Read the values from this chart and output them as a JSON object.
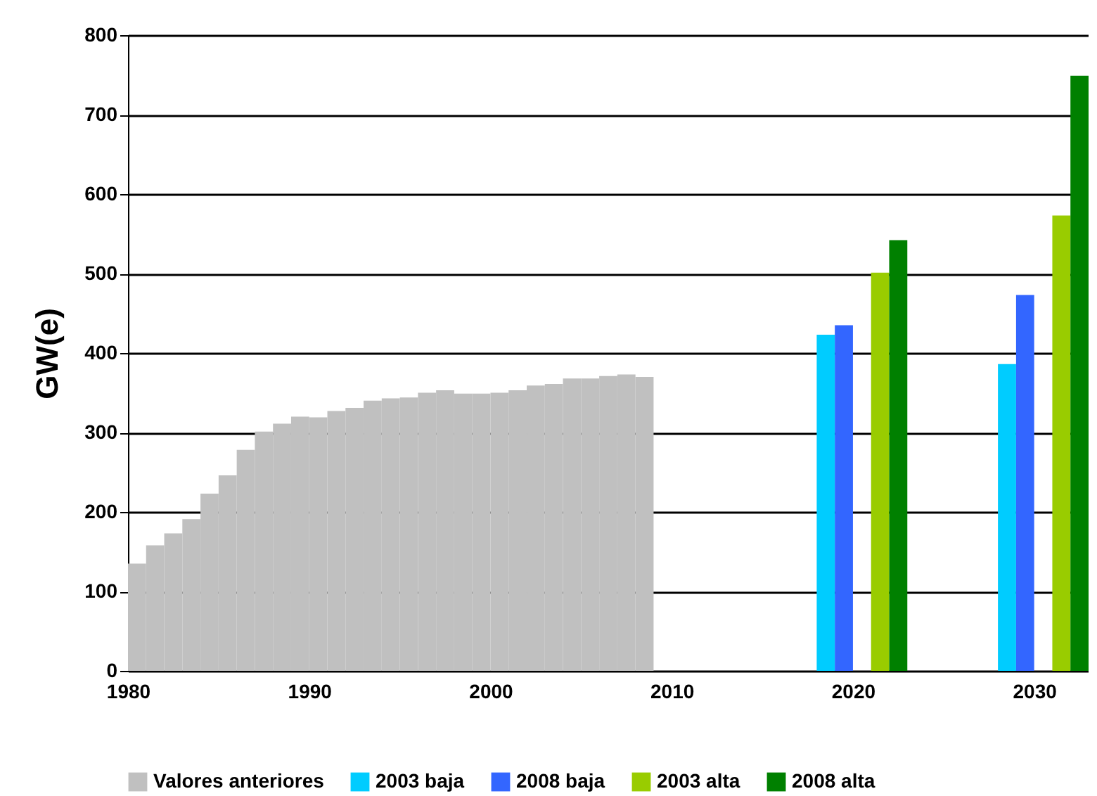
{
  "chart_data": {
    "type": "bar",
    "ylabel": "GW(e)",
    "x": [
      1980,
      1981,
      1982,
      1983,
      1984,
      1985,
      1986,
      1987,
      1988,
      1989,
      1990,
      1991,
      1992,
      1993,
      1994,
      1995,
      1996,
      1997,
      1998,
      1999,
      2000,
      2001,
      2002,
      2003,
      2004,
      2005,
      2006,
      2007,
      2008
    ],
    "series": [
      {
        "name": "Valores anteriores",
        "color": "#c0c0c0",
        "values": [
          135,
          158,
          173,
          191,
          223,
          246,
          278,
          301,
          311,
          320,
          319,
          327,
          331,
          340,
          343,
          344,
          350,
          353,
          349,
          349,
          350,
          353,
          359,
          361,
          368,
          368,
          371,
          373,
          370
        ]
      },
      {
        "name": "2003 baja",
        "color": "#00ccff",
        "x": [
          2018,
          2028
        ],
        "values": [
          423,
          386
        ]
      },
      {
        "name": "2008 baja",
        "color": "#3366ff",
        "x": [
          2019,
          2029
        ],
        "values": [
          435,
          473
        ]
      },
      {
        "name": "2003 alta",
        "color": "#99cc00",
        "x": [
          2021,
          2031
        ],
        "values": [
          501,
          573
        ]
      },
      {
        "name": "2008 alta",
        "color": "#008000",
        "x": [
          2022,
          2032
        ],
        "values": [
          542,
          749
        ]
      }
    ],
    "xlim": [
      1980,
      2033
    ],
    "xticks": [
      1980,
      1990,
      2000,
      2010,
      2020,
      2030
    ],
    "ylim": [
      0,
      800
    ],
    "yticks": [
      0,
      100,
      200,
      300,
      400,
      500,
      600,
      700,
      800
    ],
    "grid": "y",
    "legend": "bottom"
  }
}
